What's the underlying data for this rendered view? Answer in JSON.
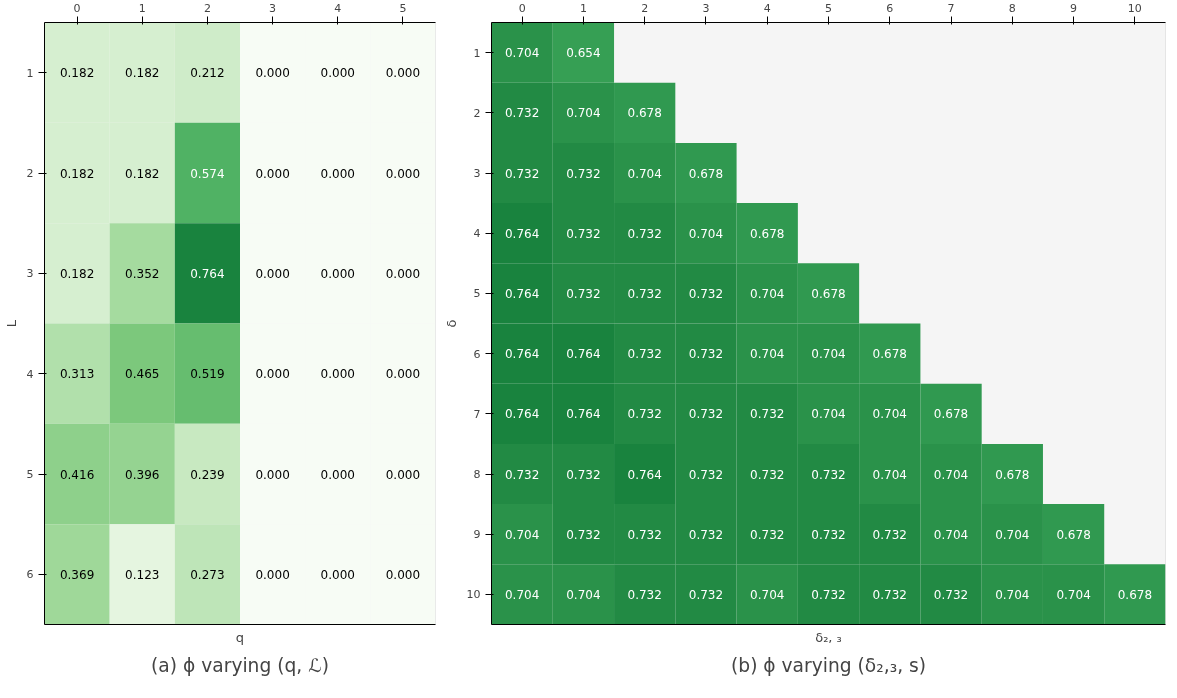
{
  "chart_data": [
    {
      "type": "heatmap",
      "xlabel": "q",
      "ylabel": "L",
      "data_labels": true,
      "annotations": [
        "(a) ϕ varying (q, ℒ)"
      ],
      "cell_labels": [
        [
          "0.182",
          "0.182",
          "0.212",
          "0.000",
          "0.000",
          "0.000"
        ],
        [
          "0.182",
          "0.182",
          "0.574",
          "0.000",
          "0.000",
          "0.000"
        ],
        [
          "0.182",
          "0.352",
          "0.764",
          "0.000",
          "0.000",
          "0.000"
        ],
        [
          "0.313",
          "0.465",
          "0.519",
          "0.000",
          "0.000",
          "0.000"
        ],
        [
          "0.416",
          "0.396",
          "0.239",
          "0.000",
          "0.000",
          "0.000"
        ],
        [
          "0.369",
          "0.123",
          "0.273",
          "0.000",
          "0.000",
          "0.000"
        ]
      ],
      "categories": [
        "0",
        "1",
        "2",
        "3",
        "4",
        "5"
      ],
      "y_categories": [
        "1",
        "2",
        "3",
        "4",
        "5",
        "6"
      ],
      "cells": [
        [
          0.182,
          0.182,
          0.212,
          0.0,
          0.0,
          0.0
        ],
        [
          0.182,
          0.182,
          0.574,
          0.0,
          0.0,
          0.0
        ],
        [
          0.182,
          0.352,
          0.764,
          0.0,
          0.0,
          0.0
        ],
        [
          0.313,
          0.465,
          0.519,
          0.0,
          0.0,
          0.0
        ],
        [
          0.416,
          0.396,
          0.239,
          0.0,
          0.0,
          0.0
        ],
        [
          0.369,
          0.123,
          0.273,
          0.0,
          0.0,
          0.0
        ]
      ]
    },
    {
      "type": "heatmap",
      "xlabel": "δ₂, ₃",
      "ylabel": "δ",
      "data_labels": true,
      "annotations": [
        "(b) ϕ varying (δ₂,₃, s)"
      ],
      "categories": [
        "0",
        "1",
        "2",
        "3",
        "4",
        "5",
        "6",
        "7",
        "8",
        "9",
        "10"
      ],
      "y_categories": [
        "1",
        "2",
        "3",
        "4",
        "5",
        "6",
        "7",
        "8",
        "9",
        "10"
      ],
      "cells": [
        [
          0.704,
          0.654,
          null,
          null,
          null,
          null,
          null,
          null,
          null,
          null,
          null
        ],
        [
          0.732,
          0.704,
          0.678,
          null,
          null,
          null,
          null,
          null,
          null,
          null,
          null
        ],
        [
          0.732,
          0.732,
          0.704,
          0.678,
          null,
          null,
          null,
          null,
          null,
          null,
          null
        ],
        [
          0.764,
          0.732,
          0.732,
          0.704,
          0.678,
          null,
          null,
          null,
          null,
          null,
          null
        ],
        [
          0.764,
          0.732,
          0.732,
          0.732,
          0.704,
          0.678,
          null,
          null,
          null,
          null,
          null
        ],
        [
          0.764,
          0.764,
          0.732,
          0.732,
          0.704,
          0.704,
          0.678,
          null,
          null,
          null,
          null
        ],
        [
          0.764,
          0.764,
          0.732,
          0.732,
          0.732,
          0.704,
          0.704,
          0.678,
          null,
          null,
          null
        ],
        [
          0.732,
          0.732,
          0.764,
          0.732,
          0.732,
          0.732,
          0.704,
          0.704,
          0.678,
          null,
          null
        ],
        [
          0.704,
          0.732,
          0.732,
          0.732,
          0.732,
          0.732,
          0.732,
          0.704,
          0.704,
          0.678,
          null
        ],
        [
          0.704,
          0.704,
          0.732,
          0.732,
          0.704,
          0.732,
          0.732,
          0.732,
          0.704,
          0.704,
          0.678
        ]
      ]
    }
  ]
}
